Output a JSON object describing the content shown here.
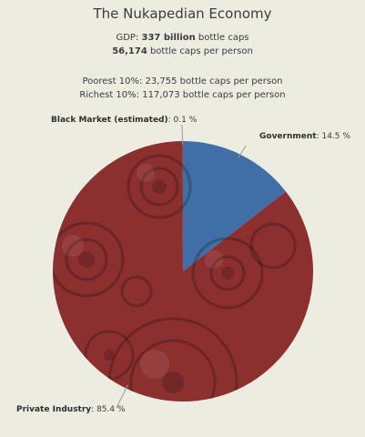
{
  "title": "The Nukapedian Economy",
  "gdp": {
    "prefix": "GDP: ",
    "value": "337 billion",
    "unit": " bottle caps",
    "per_person_value": "56,174",
    "per_person_unit": " bottle caps per person"
  },
  "distribution": {
    "poorest": "Poorest 10%: 23,755 bottle caps per person",
    "richest": "Richest 10%: 117,073 bottle caps per person"
  },
  "chart_data": {
    "type": "pie",
    "title": "The Nukapedian Economy",
    "slices": [
      {
        "name": "Government",
        "value": 14.5,
        "display": "14.5 %",
        "color": "#3f6fa6"
      },
      {
        "name": "Private Industry",
        "value": 85.4,
        "display": "85.4 %",
        "color": "#8c2f2f"
      },
      {
        "name": "Black Market (estimated)",
        "value": 0.1,
        "display": "0.1 %",
        "color": "#8c2f2f"
      }
    ],
    "start_angle_deg": 0,
    "direction": "clockwise"
  },
  "colors": {
    "background": "#ecece0",
    "government": "#3f6fa6",
    "private": "#8c2f2f",
    "leader": "#9a9a9a"
  }
}
